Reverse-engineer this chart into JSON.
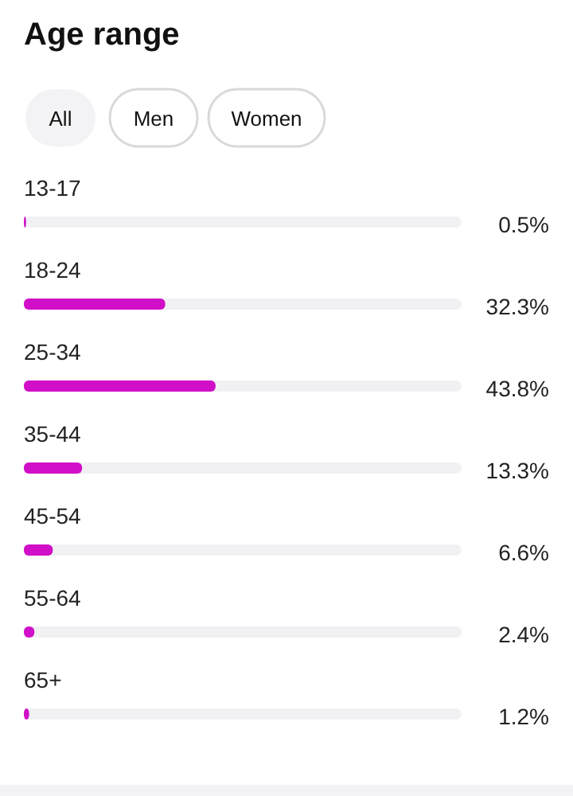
{
  "chart_data": {
    "type": "bar",
    "orientation": "horizontal",
    "title": "Age range",
    "annotations": [
      "All",
      "Men",
      "Women"
    ],
    "categories": [
      "13-17",
      "18-24",
      "25-34",
      "35-44",
      "45-54",
      "55-64",
      "65+"
    ],
    "values": [
      0.5,
      32.3,
      43.8,
      13.3,
      6.6,
      2.4,
      1.2
    ],
    "value_labels": [
      "0.5%",
      "32.3%",
      "43.8%",
      "13.3%",
      "6.6%",
      "2.4%",
      "1.2%"
    ],
    "color": "#d10fc8",
    "xlim": [
      0,
      100
    ]
  }
}
